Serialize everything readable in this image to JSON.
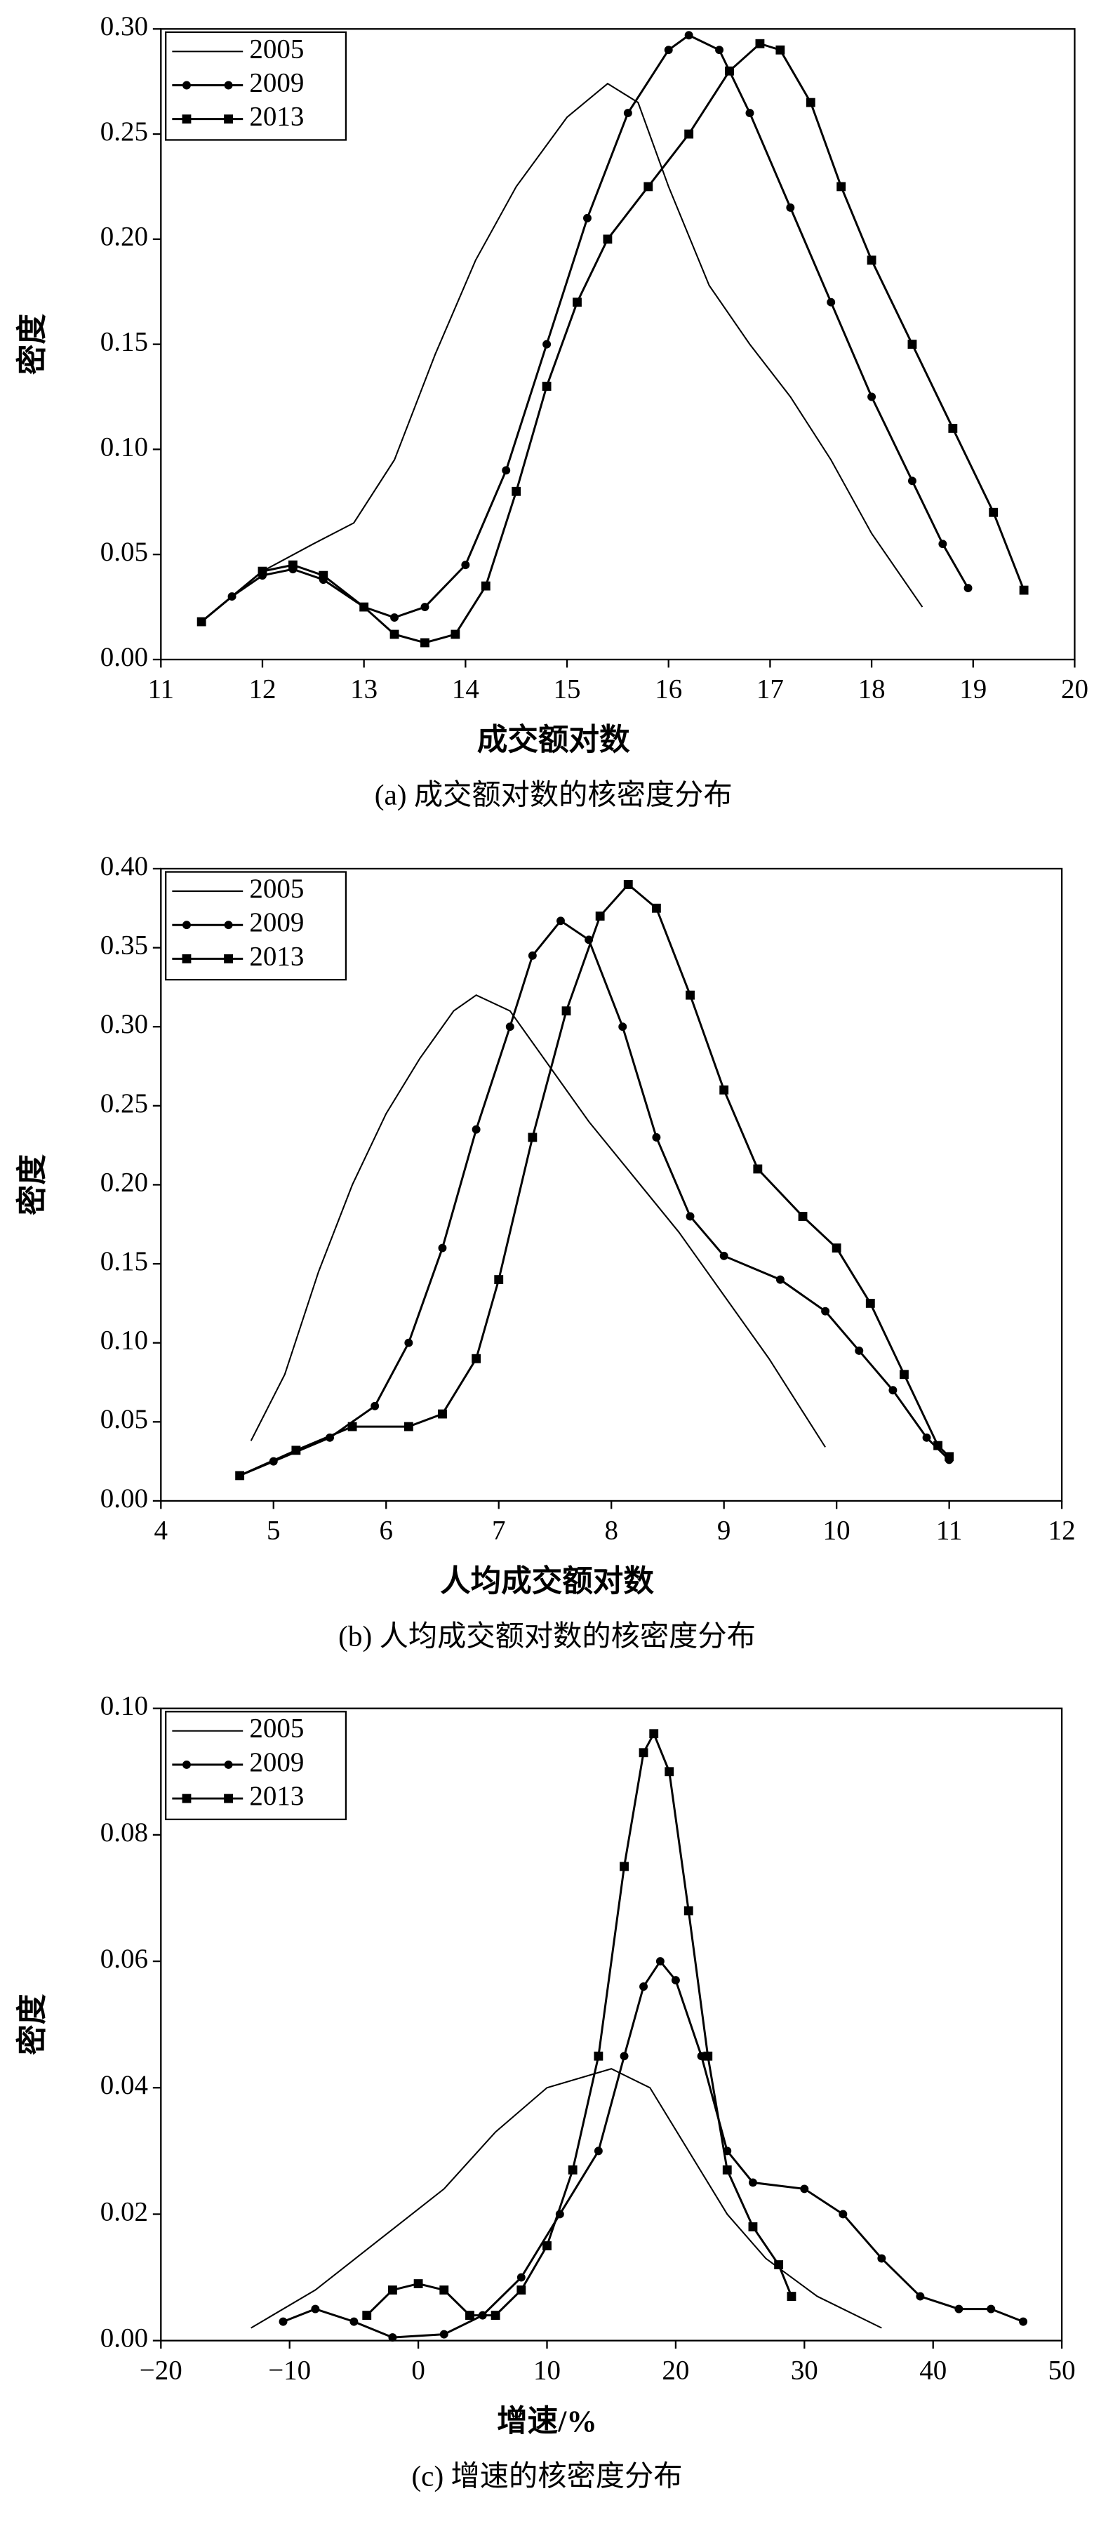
{
  "chart_data": [
    {
      "type": "line",
      "xlabel": "成交额对数",
      "ylabel": "密度",
      "caption": "(a) 成交额对数的核密度分布",
      "xlim": [
        11,
        20
      ],
      "xticks": [
        11,
        12,
        13,
        14,
        15,
        16,
        17,
        18,
        19,
        20
      ],
      "ylim": [
        0,
        0.3
      ],
      "yticks": [
        {
          "value": 0,
          "label": "0.00"
        },
        {
          "value": 0.05,
          "label": "0.05"
        },
        {
          "value": 0.1,
          "label": "0.10"
        },
        {
          "value": 0.15,
          "label": "0.15"
        },
        {
          "value": 0.2,
          "label": "0.20"
        },
        {
          "value": 0.25,
          "label": "0.25"
        },
        {
          "value": 0.3,
          "label": "0.30"
        }
      ],
      "legend": "upper left",
      "series": [
        {
          "name": "2005",
          "color": "#000000",
          "marker": "none",
          "x": [
            11.4,
            12.0,
            12.5,
            12.9,
            13.3,
            13.7,
            14.1,
            14.5,
            15.0,
            15.4,
            15.7,
            16.0,
            16.4,
            16.8,
            17.2,
            17.6,
            18.0,
            18.5
          ],
          "values": [
            0.018,
            0.042,
            0.055,
            0.065,
            0.095,
            0.145,
            0.19,
            0.225,
            0.258,
            0.274,
            0.265,
            0.225,
            0.178,
            0.15,
            0.125,
            0.095,
            0.06,
            0.025
          ]
        },
        {
          "name": "2009",
          "color": "#000000",
          "marker": "circle",
          "x": [
            11.4,
            11.7,
            12.0,
            12.3,
            12.6,
            13.0,
            13.3,
            13.6,
            14.0,
            14.4,
            14.8,
            15.2,
            15.6,
            16.0,
            16.2,
            16.5,
            16.8,
            17.2,
            17.6,
            18.0,
            18.4,
            18.7,
            18.95
          ],
          "values": [
            0.018,
            0.03,
            0.04,
            0.043,
            0.038,
            0.025,
            0.02,
            0.025,
            0.045,
            0.09,
            0.15,
            0.21,
            0.26,
            0.29,
            0.297,
            0.29,
            0.26,
            0.215,
            0.17,
            0.125,
            0.085,
            0.055,
            0.034
          ]
        },
        {
          "name": "2013",
          "color": "#000000",
          "marker": "square",
          "x": [
            11.4,
            12.0,
            12.3,
            12.6,
            13.0,
            13.3,
            13.6,
            13.9,
            14.2,
            14.5,
            14.8,
            15.1,
            15.4,
            15.8,
            16.2,
            16.6,
            16.9,
            17.1,
            17.4,
            17.7,
            18.0,
            18.4,
            18.8,
            19.2,
            19.5
          ],
          "values": [
            0.018,
            0.042,
            0.045,
            0.04,
            0.025,
            0.012,
            0.008,
            0.012,
            0.035,
            0.08,
            0.13,
            0.17,
            0.2,
            0.225,
            0.25,
            0.28,
            0.293,
            0.29,
            0.265,
            0.225,
            0.19,
            0.15,
            0.11,
            0.07,
            0.033
          ]
        }
      ]
    },
    {
      "type": "line",
      "xlabel": "人均成交额对数",
      "ylabel": "密度",
      "caption": "(b) 人均成交额对数的核密度分布",
      "xlim": [
        4,
        12
      ],
      "xticks": [
        4,
        5,
        6,
        7,
        8,
        9,
        10,
        11,
        12
      ],
      "ylim": [
        0,
        0.4
      ],
      "yticks": [
        {
          "value": 0,
          "label": "0.00"
        },
        {
          "value": 0.05,
          "label": "0.05"
        },
        {
          "value": 0.1,
          "label": "0.10"
        },
        {
          "value": 0.15,
          "label": "0.15"
        },
        {
          "value": 0.2,
          "label": "0.20"
        },
        {
          "value": 0.25,
          "label": "0.25"
        },
        {
          "value": 0.3,
          "label": "0.30"
        },
        {
          "value": 0.35,
          "label": "0.35"
        },
        {
          "value": 0.4,
          "label": "0.40"
        }
      ],
      "legend": "upper left",
      "series": [
        {
          "name": "2005",
          "color": "#000000",
          "marker": "none",
          "x": [
            4.8,
            5.1,
            5.4,
            5.7,
            6.0,
            6.3,
            6.6,
            6.8,
            7.1,
            7.4,
            7.8,
            8.2,
            8.6,
            9.0,
            9.4,
            9.9
          ],
          "values": [
            0.038,
            0.08,
            0.145,
            0.2,
            0.245,
            0.28,
            0.31,
            0.32,
            0.31,
            0.28,
            0.24,
            0.205,
            0.17,
            0.13,
            0.09,
            0.034
          ]
        },
        {
          "name": "2009",
          "color": "#000000",
          "marker": "circle",
          "x": [
            4.7,
            5.0,
            5.5,
            5.9,
            6.2,
            6.5,
            6.8,
            7.1,
            7.3,
            7.55,
            7.8,
            8.1,
            8.4,
            8.7,
            9.0,
            9.5,
            9.9,
            10.2,
            10.5,
            10.8,
            11.0
          ],
          "values": [
            0.016,
            0.025,
            0.04,
            0.06,
            0.1,
            0.16,
            0.235,
            0.3,
            0.345,
            0.367,
            0.355,
            0.3,
            0.23,
            0.18,
            0.155,
            0.14,
            0.12,
            0.095,
            0.07,
            0.04,
            0.026
          ]
        },
        {
          "name": "2013",
          "color": "#000000",
          "marker": "square",
          "x": [
            4.7,
            5.2,
            5.7,
            6.2,
            6.5,
            6.8,
            7.0,
            7.3,
            7.6,
            7.9,
            8.15,
            8.4,
            8.7,
            9.0,
            9.3,
            9.7,
            10.0,
            10.3,
            10.6,
            10.9,
            11.0
          ],
          "values": [
            0.016,
            0.032,
            0.047,
            0.047,
            0.055,
            0.09,
            0.14,
            0.23,
            0.31,
            0.37,
            0.39,
            0.375,
            0.32,
            0.26,
            0.21,
            0.18,
            0.16,
            0.125,
            0.08,
            0.035,
            0.028
          ]
        }
      ]
    },
    {
      "type": "line",
      "xlabel": "增速/%",
      "ylabel": "密度",
      "caption": "(c) 增速的核密度分布",
      "xlim": [
        -20,
        50
      ],
      "xticks": [
        {
          "value": -20,
          "label": "−20"
        },
        {
          "value": -10,
          "label": "−10"
        },
        0,
        10,
        20,
        30,
        40,
        50
      ],
      "ylim": [
        0,
        0.1
      ],
      "yticks": [
        {
          "value": 0,
          "label": "0.00"
        },
        {
          "value": 0.02,
          "label": "0.02"
        },
        {
          "value": 0.04,
          "label": "0.04"
        },
        {
          "value": 0.06,
          "label": "0.06"
        },
        {
          "value": 0.08,
          "label": "0.08"
        },
        {
          "value": 0.1,
          "label": "0.10"
        }
      ],
      "legend": "upper left",
      "series": [
        {
          "name": "2005",
          "color": "#000000",
          "marker": "none",
          "x": [
            -13,
            -8,
            -3,
            2,
            6,
            10,
            15,
            18,
            21,
            24,
            27,
            31,
            36
          ],
          "values": [
            0.002,
            0.008,
            0.016,
            0.024,
            0.033,
            0.04,
            0.043,
            0.04,
            0.03,
            0.02,
            0.013,
            0.007,
            0.002
          ]
        },
        {
          "name": "2009",
          "color": "#000000",
          "marker": "circle",
          "x": [
            -10.5,
            -8,
            -5,
            -2,
            2,
            5,
            8,
            11,
            14,
            16,
            17.5,
            18.8,
            20,
            22,
            24,
            26,
            30,
            33,
            36,
            39,
            42,
            44.5,
            47
          ],
          "values": [
            0.003,
            0.005,
            0.003,
            0.0005,
            0.001,
            0.004,
            0.01,
            0.02,
            0.03,
            0.045,
            0.056,
            0.06,
            0.057,
            0.045,
            0.03,
            0.025,
            0.024,
            0.02,
            0.013,
            0.007,
            0.005,
            0.005,
            0.003
          ]
        },
        {
          "name": "2013",
          "color": "#000000",
          "marker": "square",
          "x": [
            -4,
            -2,
            0,
            2,
            4,
            6,
            8,
            10,
            12,
            14,
            16,
            17.5,
            18.3,
            19.5,
            21,
            22.5,
            24,
            26,
            28,
            29
          ],
          "values": [
            0.004,
            0.008,
            0.009,
            0.008,
            0.004,
            0.004,
            0.008,
            0.015,
            0.027,
            0.045,
            0.075,
            0.093,
            0.096,
            0.09,
            0.068,
            0.045,
            0.027,
            0.018,
            0.012,
            0.007
          ]
        }
      ]
    }
  ]
}
